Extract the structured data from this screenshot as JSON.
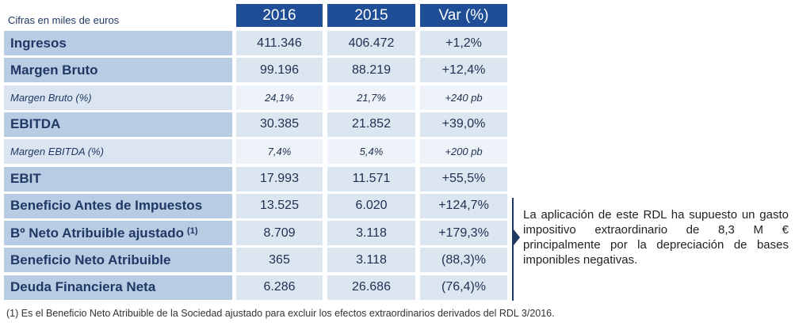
{
  "caption": "Cifras en miles de euros",
  "header": {
    "columns": [
      "2016",
      "2015",
      "Var (%)"
    ]
  },
  "table": {
    "rows": [
      {
        "label": "Ingresos",
        "values": [
          "411.346",
          "406.472",
          "+1,2%"
        ]
      },
      {
        "label": "Margen Bruto",
        "values": [
          "99.196",
          "88.219",
          "+12,4%"
        ]
      },
      {
        "label": "Margen Bruto (%)",
        "values": [
          "24,1%",
          "21,7%",
          "+240 pb"
        ]
      },
      {
        "label": "EBITDA",
        "values": [
          "30.385",
          "21.852",
          "+39,0%"
        ]
      },
      {
        "label": "Margen EBITDA (%)",
        "values": [
          "7,4%",
          "5,4%",
          "+200 pb"
        ]
      },
      {
        "label": "EBIT",
        "values": [
          "17.993",
          "11.571",
          "+55,5%"
        ]
      },
      {
        "label": "Beneficio Antes de Impuestos",
        "values": [
          "13.525",
          "6.020",
          "+124,7%"
        ]
      },
      {
        "label": "Bº Neto Atribuible ajustado",
        "note_ref": "(1)",
        "values": [
          "8.709",
          "3.118",
          "+179,3%"
        ]
      },
      {
        "label": "Beneficio Neto Atribuible",
        "values": [
          "365",
          "3.118",
          "(88,3)%"
        ]
      },
      {
        "label": "Deuda Financiera Neta",
        "values": [
          "6.286",
          "26.686",
          "(76,4)%"
        ]
      }
    ]
  },
  "note": "La aplicación de este RDL ha supuesto un gasto impositivo extraordinario de 8,3 M € principalmente por la depreciación de bases imponibles negativas.",
  "footnote": "(1) Es el Beneficio Neto Atribuible de la Sociedad ajustado para excluir los efectos extraordinarios derivados del RDL 3/2016."
}
